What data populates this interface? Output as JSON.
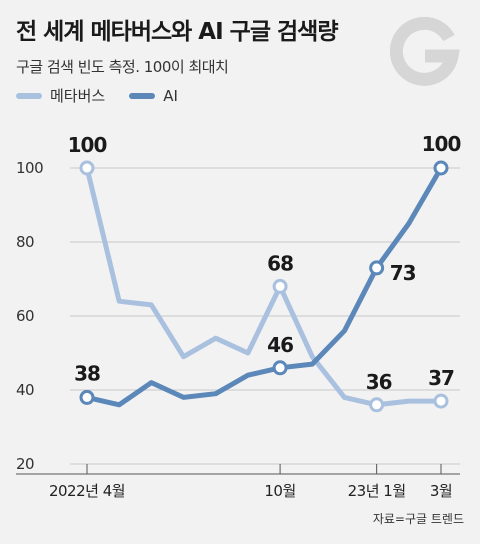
{
  "header": {
    "title": "전 세계 메타버스와 AI 구글 검색량",
    "subtitle": "구글 검색 빈도 측정. 100이 최대치"
  },
  "legend": {
    "items": [
      {
        "label": "메타버스",
        "color": "#a9c1df"
      },
      {
        "label": "AI",
        "color": "#5b87b9"
      }
    ]
  },
  "logo": {
    "icon": "google-g-icon",
    "color": "#d6d6d6"
  },
  "source": "자료=구글 트렌드",
  "colors": {
    "metaverse": "#a9c1df",
    "ai": "#5b87b9",
    "grid": "#c8c8c8",
    "background": "#f2f2f2"
  },
  "chart_data": {
    "type": "line",
    "x": [
      "2022-04",
      "2022-05",
      "2022-06",
      "2022-07",
      "2022-08",
      "2022-09",
      "2022-10",
      "2022-11",
      "2022-12",
      "2023-01",
      "2023-02",
      "2023-03"
    ],
    "x_tick_labels": [
      {
        "x": "2022-04",
        "label": "2022년 4월"
      },
      {
        "x": "2022-10",
        "label": "10월"
      },
      {
        "x": "2023-01",
        "label": "23년 1월"
      },
      {
        "x": "2023-03",
        "label": "3월"
      }
    ],
    "y_ticks": [
      20,
      40,
      60,
      80,
      100
    ],
    "ylim": [
      20,
      100
    ],
    "grid": true,
    "legend_position": "top-left",
    "series": [
      {
        "name": "메타버스",
        "color": "#a9c1df",
        "values": [
          100,
          64,
          63,
          49,
          54,
          50,
          68,
          49,
          38,
          36,
          37,
          37
        ],
        "labels": [
          {
            "x": "2022-04",
            "value": "100"
          },
          {
            "x": "2022-10",
            "value": "68"
          },
          {
            "x": "2023-01",
            "value": "36"
          },
          {
            "x": "2023-03",
            "value": "37"
          }
        ]
      },
      {
        "name": "AI",
        "color": "#5b87b9",
        "values": [
          38,
          36,
          42,
          38,
          39,
          44,
          46,
          47,
          56,
          73,
          85,
          100
        ],
        "labels": [
          {
            "x": "2022-04",
            "value": "38"
          },
          {
            "x": "2022-10",
            "value": "46"
          },
          {
            "x": "2023-01",
            "value": "73"
          },
          {
            "x": "2023-03",
            "value": "100"
          }
        ]
      }
    ]
  }
}
